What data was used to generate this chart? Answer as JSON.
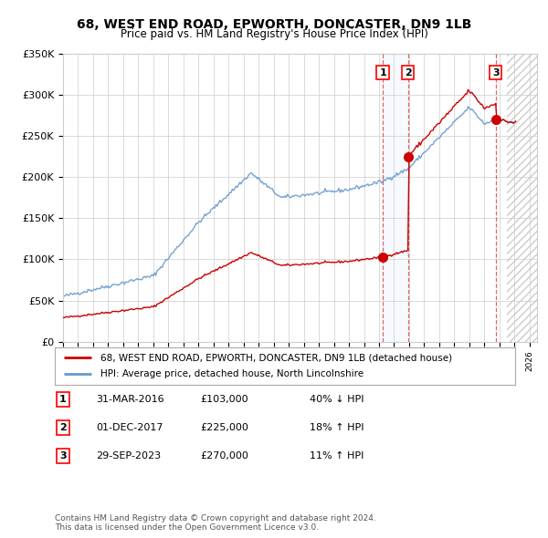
{
  "title": "68, WEST END ROAD, EPWORTH, DONCASTER, DN9 1LB",
  "subtitle": "Price paid vs. HM Land Registry's House Price Index (HPI)",
  "ylim": [
    0,
    350000
  ],
  "yticks": [
    0,
    50000,
    100000,
    150000,
    200000,
    250000,
    300000,
    350000
  ],
  "ytick_labels": [
    "£0",
    "£50K",
    "£100K",
    "£150K",
    "£200K",
    "£250K",
    "£300K",
    "£350K"
  ],
  "xlim_start": 1995.0,
  "xlim_end": 2026.5,
  "transactions": [
    {
      "x": 2016.25,
      "price": 103000,
      "label": "1",
      "direction": "↓",
      "pct": "40%",
      "date": "31-MAR-2016",
      "price_str": "£103,000"
    },
    {
      "x": 2017.92,
      "price": 225000,
      "label": "2",
      "direction": "↑",
      "pct": "18%",
      "date": "01-DEC-2017",
      "price_str": "£225,000"
    },
    {
      "x": 2023.75,
      "price": 270000,
      "label": "3",
      "direction": "↑",
      "pct": "11%",
      "date": "29-SEP-2023",
      "price_str": "£270,000"
    }
  ],
  "red_line_color": "#cc0000",
  "blue_line_color": "#6699cc",
  "transaction_shade_color": "#ddeeff",
  "grid_color": "#cccccc",
  "background_color": "#ffffff",
  "footer_text": "Contains HM Land Registry data © Crown copyright and database right 2024.\nThis data is licensed under the Open Government Licence v3.0.",
  "legend_label_red": "68, WEST END ROAD, EPWORTH, DONCASTER, DN9 1LB (detached house)",
  "legend_label_blue": "HPI: Average price, detached house, North Lincolnshire",
  "table_rows": [
    [
      "1",
      "31-MAR-2016",
      "£103,000",
      "40% ↓ HPI"
    ],
    [
      "2",
      "01-DEC-2017",
      "£225,000",
      "18% ↑ HPI"
    ],
    [
      "3",
      "29-SEP-2023",
      "£270,000",
      "11% ↑ HPI"
    ]
  ],
  "hatched_region_start": 2024.5,
  "hatched_region_end": 2026.5
}
